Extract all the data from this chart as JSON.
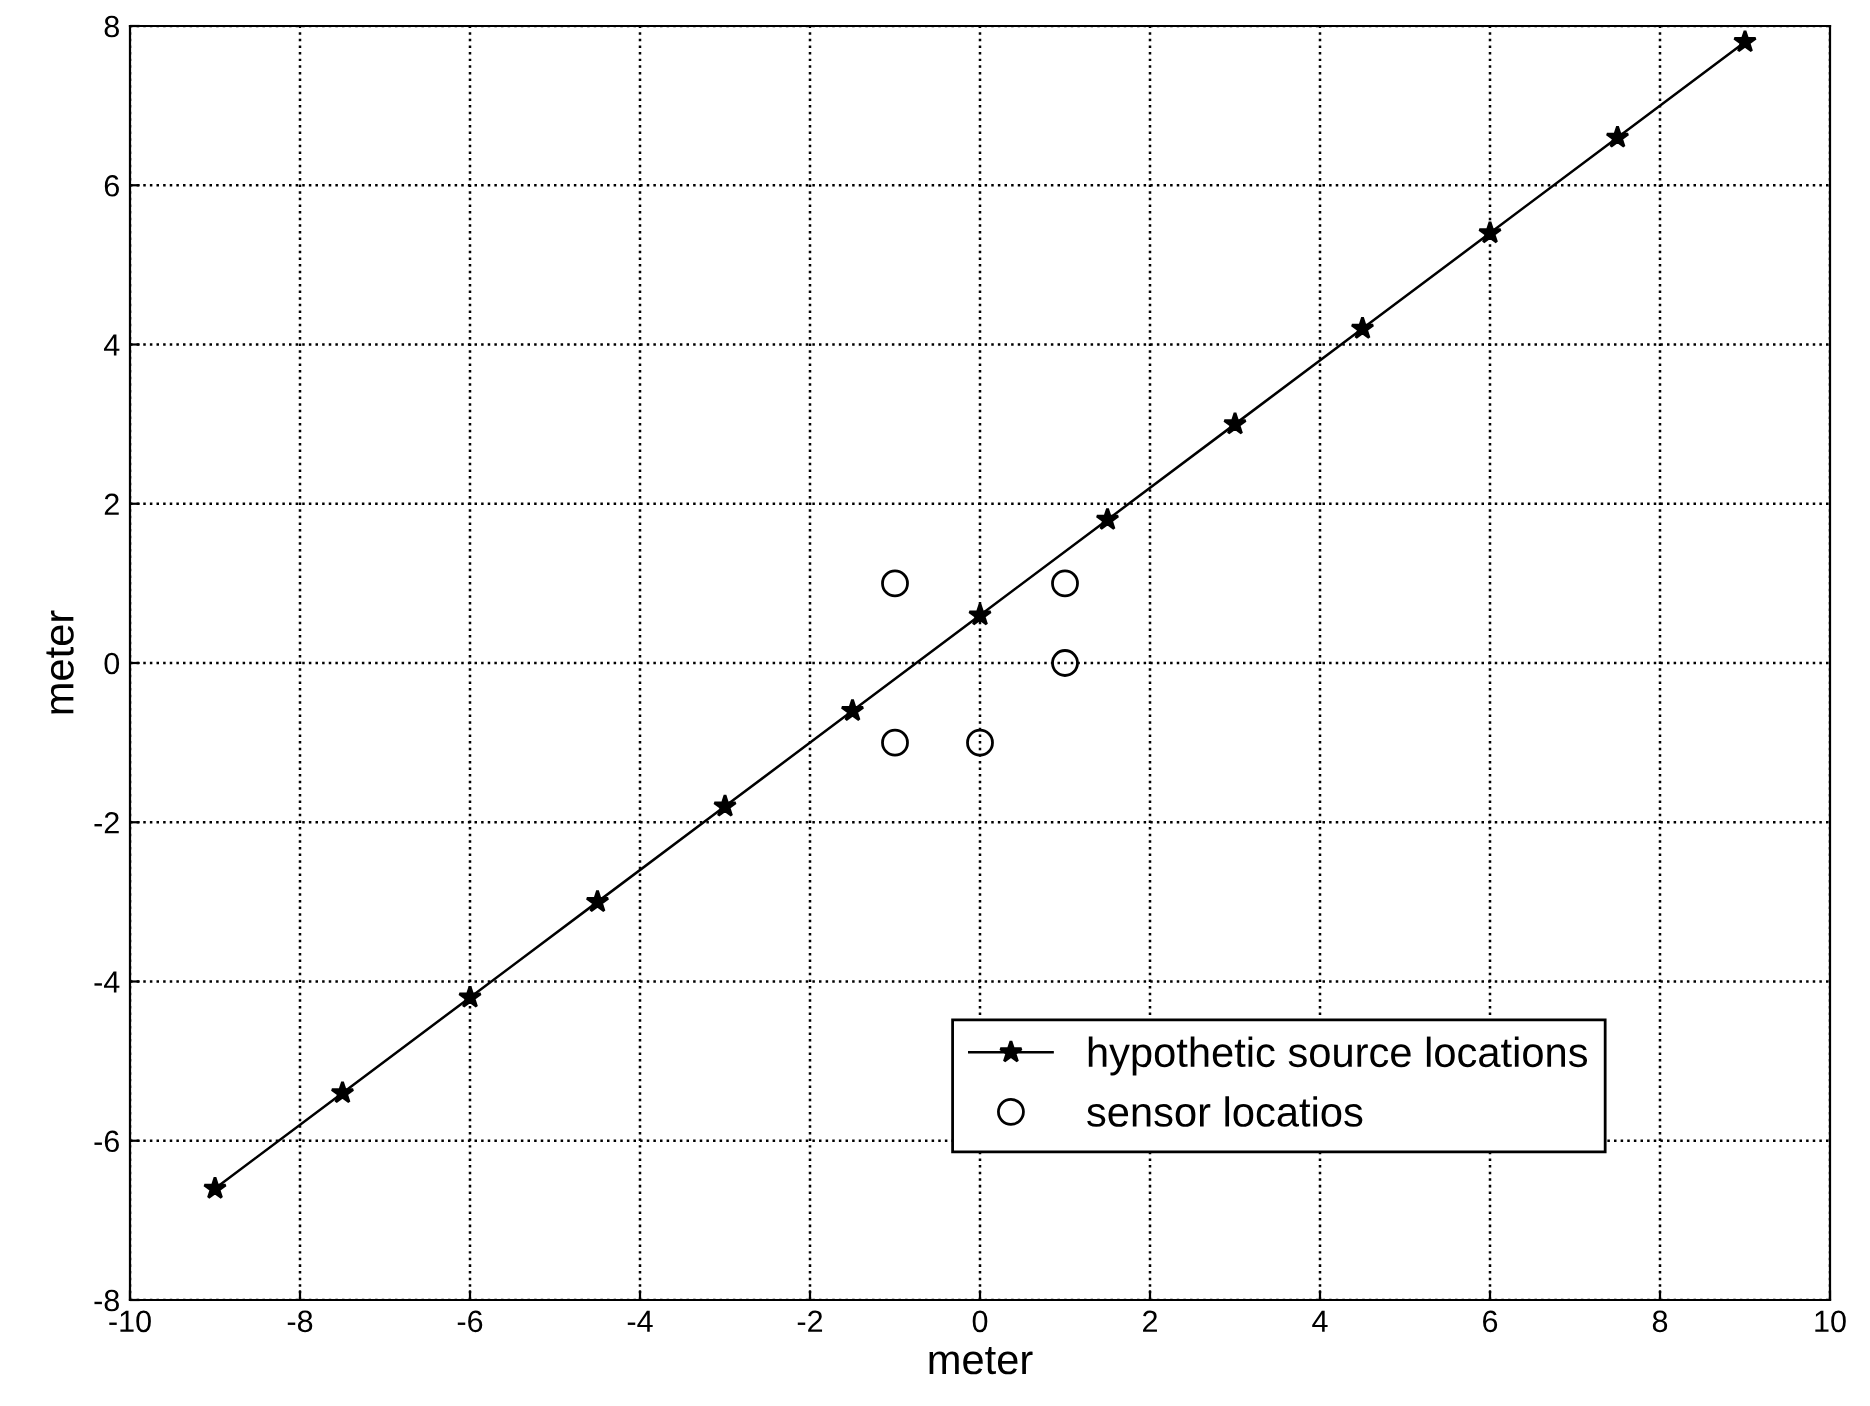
{
  "chart_data": {
    "type": "line",
    "xlabel": "meter",
    "ylabel": "meter",
    "xlim": [
      -10,
      10
    ],
    "ylim": [
      -8,
      8
    ],
    "xticks": [
      -10,
      -8,
      -6,
      -4,
      -2,
      0,
      2,
      4,
      6,
      8,
      10
    ],
    "yticks": [
      -8,
      -6,
      -4,
      -2,
      0,
      2,
      4,
      6,
      8
    ],
    "grid": true,
    "legend": "bottom right",
    "series": [
      {
        "name": "hypothetic source locations",
        "color": "#000000",
        "marker": "star",
        "line_style": "solid",
        "x": [
          -9,
          -7.5,
          -6,
          -4.5,
          -3,
          -1.5,
          0,
          1.5,
          3,
          4.5,
          6,
          7.5,
          9
        ],
        "values": [
          -6.6,
          -5.4,
          -4.2,
          -3.0,
          -1.8,
          -0.6,
          0.6,
          1.8,
          3.0,
          4.2,
          5.4,
          6.6,
          7.8
        ]
      },
      {
        "name": "sensor locatios",
        "type": "scatter",
        "color": "#000000",
        "marker": "circle",
        "x": [
          -1,
          -1,
          0,
          1,
          1
        ],
        "values": [
          1,
          -1,
          -1,
          1,
          0
        ]
      }
    ]
  }
}
